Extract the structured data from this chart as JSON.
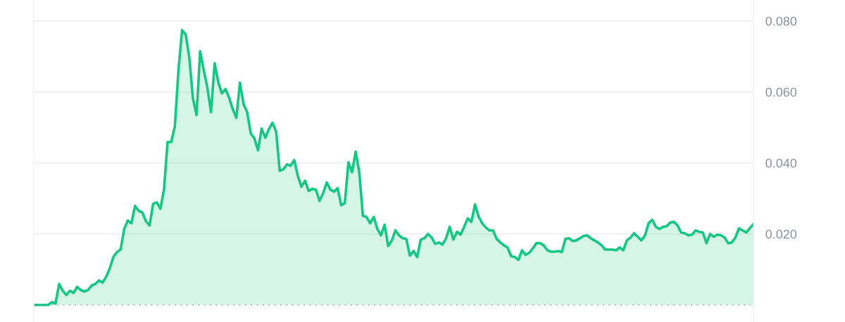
{
  "chart_data": {
    "type": "area",
    "categories": [
      null,
      null,
      null,
      null,
      null,
      null,
      null,
      null,
      null,
      null,
      null,
      null,
      null,
      null,
      null,
      null,
      null,
      null,
      null,
      null,
      null,
      null,
      null,
      null,
      null,
      null,
      null,
      null,
      null,
      null,
      null,
      null,
      null,
      null,
      null,
      null,
      null,
      null,
      null,
      null,
      null,
      null,
      null,
      null,
      null,
      null,
      null,
      null,
      null,
      null,
      null,
      null,
      null,
      null,
      null,
      null,
      null,
      null,
      null,
      null,
      null,
      null,
      null,
      null,
      null,
      null,
      null,
      null,
      null,
      null,
      null,
      null,
      null,
      null,
      null,
      null,
      null,
      null,
      null,
      null,
      null,
      null,
      null,
      null,
      null,
      null,
      null,
      null,
      null,
      null,
      null,
      null,
      null,
      null,
      null,
      null,
      null,
      null,
      null,
      null,
      null,
      null,
      null,
      null,
      null,
      null,
      null,
      null,
      null,
      null,
      null,
      null,
      null,
      null,
      null,
      null,
      null,
      null,
      null,
      null,
      null,
      null,
      null,
      null,
      null,
      null,
      null,
      null,
      null,
      null,
      null,
      null,
      null,
      null,
      null,
      null,
      null,
      null,
      null,
      null,
      null,
      null,
      null,
      null,
      null,
      null,
      null,
      null,
      null,
      null,
      null,
      null,
      null,
      null,
      null,
      null,
      null,
      null,
      null,
      null,
      null,
      null,
      null,
      null,
      null,
      null,
      null,
      null,
      null,
      null,
      null,
      null,
      null,
      null,
      null,
      null,
      null,
      null,
      null,
      null,
      null,
      null,
      null,
      null,
      null,
      null,
      null,
      null,
      null,
      null,
      null,
      null,
      null,
      null,
      null,
      null,
      null,
      null,
      null,
      null
    ],
    "series": [
      {
        "color": "#16c784",
        "values": [
          0,
          0,
          0,
          0,
          0,
          0.0008,
          0.0004,
          0.0059,
          0.004,
          0.0028,
          0.004,
          0.0034,
          0.0051,
          0.0042,
          0.0038,
          0.0042,
          0.0055,
          0.0059,
          0.0069,
          0.0063,
          0.0079,
          0.0103,
          0.0135,
          0.0149,
          0.0156,
          0.0214,
          0.0238,
          0.023,
          0.0279,
          0.0265,
          0.0261,
          0.0236,
          0.0224,
          0.0285,
          0.0289,
          0.0271,
          0.0325,
          0.0459,
          0.0459,
          0.0503,
          0.0661,
          0.0774,
          0.0762,
          0.0697,
          0.0582,
          0.0535,
          0.0715,
          0.0661,
          0.0612,
          0.0543,
          0.0681,
          0.0628,
          0.0596,
          0.0608,
          0.0584,
          0.0552,
          0.0527,
          0.0626,
          0.0566,
          0.0543,
          0.0483,
          0.0469,
          0.0436,
          0.0497,
          0.0471,
          0.0495,
          0.0513,
          0.0489,
          0.0378,
          0.0382,
          0.0396,
          0.0392,
          0.0408,
          0.0364,
          0.0333,
          0.035,
          0.0321,
          0.0327,
          0.0325,
          0.0293,
          0.0315,
          0.0345,
          0.0325,
          0.0319,
          0.0329,
          0.0281,
          0.0287,
          0.0402,
          0.0374,
          0.0432,
          0.0374,
          0.0251,
          0.0248,
          0.023,
          0.0248,
          0.0214,
          0.0196,
          0.0226,
          0.0166,
          0.0182,
          0.021,
          0.0196,
          0.0188,
          0.0186,
          0.0139,
          0.0152,
          0.0135,
          0.0184,
          0.0188,
          0.02,
          0.019,
          0.0172,
          0.0176,
          0.017,
          0.0188,
          0.022,
          0.0184,
          0.0206,
          0.0198,
          0.022,
          0.0244,
          0.0234,
          0.0283,
          0.0249,
          0.023,
          0.0218,
          0.021,
          0.021,
          0.0186,
          0.0176,
          0.0168,
          0.0162,
          0.0137,
          0.0135,
          0.0127,
          0.0154,
          0.0141,
          0.0147,
          0.016,
          0.0174,
          0.0174,
          0.0168,
          0.0154,
          0.015,
          0.015,
          0.0152,
          0.0149,
          0.0186,
          0.0188,
          0.018,
          0.0182,
          0.0188,
          0.0194,
          0.0196,
          0.0188,
          0.0182,
          0.0176,
          0.0168,
          0.0156,
          0.0156,
          0.0156,
          0.0154,
          0.0162,
          0.0154,
          0.0182,
          0.019,
          0.0202,
          0.0192,
          0.0182,
          0.0196,
          0.023,
          0.024,
          0.022,
          0.0214,
          0.022,
          0.0222,
          0.0232,
          0.0234,
          0.0224,
          0.0204,
          0.0202,
          0.0196,
          0.0198,
          0.021,
          0.0206,
          0.0204,
          0.0174,
          0.02,
          0.0192,
          0.0198,
          0.0196,
          0.019,
          0.0174,
          0.0176,
          0.019,
          0.0216,
          0.021,
          0.0204,
          0.0216,
          0.0228
        ]
      }
    ],
    "ylim": [
      -0.0048,
      0.0859
    ],
    "yticks": [
      {
        "value": 0.02,
        "label": "0.020"
      },
      {
        "value": 0.04,
        "label": "0.040"
      },
      {
        "value": 0.06,
        "label": "0.060"
      },
      {
        "value": 0.08,
        "label": "0.080"
      }
    ],
    "grid": "y",
    "tick_labels": "y",
    "ref_lines": [
      {
        "axis": "y",
        "value": 0,
        "color": "#9ca3af",
        "line_style": "dotted"
      }
    ]
  }
}
